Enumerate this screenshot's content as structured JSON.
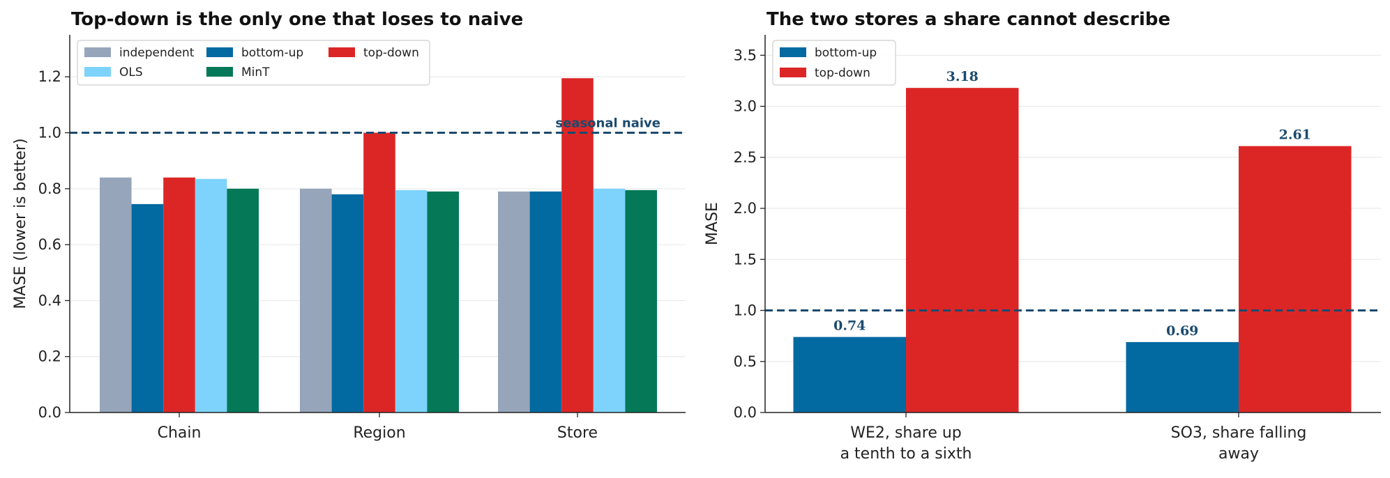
{
  "chart_data": [
    {
      "type": "bar",
      "title": "Top-down is the only one that loses to naive",
      "ylabel": "MASE (lower is better)",
      "xlabel": "",
      "categories": [
        "Chain",
        "Region",
        "Store"
      ],
      "ylim": [
        0,
        1.35
      ],
      "yticks": [
        "0.0",
        "0.2",
        "0.4",
        "0.6",
        "0.8",
        "1.0",
        "1.2"
      ],
      "grid": "horizontal",
      "legend_position": "top-left",
      "legend_columns": 3,
      "series": [
        {
          "name": "independent",
          "color": "#96a5ba",
          "values": [
            0.84,
            0.8,
            0.79
          ]
        },
        {
          "name": "bottom-up",
          "color": "#0369a1",
          "values": [
            0.745,
            0.78,
            0.79
          ]
        },
        {
          "name": "top-down",
          "color": "#dc2626",
          "values": [
            0.84,
            1.0,
            1.195
          ]
        },
        {
          "name": "OLS",
          "color": "#7dd3fc",
          "values": [
            0.835,
            0.795,
            0.8
          ]
        },
        {
          "name": "MinT",
          "color": "#047857",
          "values": [
            0.8,
            0.79,
            0.795
          ]
        }
      ],
      "reference_line": {
        "value": 1.0,
        "label": "seasonal naive",
        "color": "#1b4a6e",
        "style": "dashed"
      }
    },
    {
      "type": "bar",
      "title": "The two stores a share cannot describe",
      "ylabel": "MASE",
      "xlabel": "",
      "categories": [
        [
          "WE2, share up",
          "a tenth to a sixth"
        ],
        [
          "SO3, share falling",
          "away"
        ]
      ],
      "ylim": [
        0,
        3.7
      ],
      "yticks": [
        "0.0",
        "0.5",
        "1.0",
        "1.5",
        "2.0",
        "2.5",
        "3.0",
        "3.5"
      ],
      "grid": "horizontal",
      "legend_position": "top-left",
      "legend_columns": 1,
      "series": [
        {
          "name": "bottom-up",
          "color": "#0369a1",
          "values": [
            0.74,
            0.69
          ],
          "labels": [
            "0.74",
            "0.69"
          ]
        },
        {
          "name": "top-down",
          "color": "#dc2626",
          "values": [
            3.18,
            2.61
          ],
          "labels": [
            "3.18",
            "2.61"
          ]
        }
      ],
      "reference_line": {
        "value": 1.0,
        "label": "",
        "color": "#1b4a6e",
        "style": "dashed"
      }
    }
  ]
}
